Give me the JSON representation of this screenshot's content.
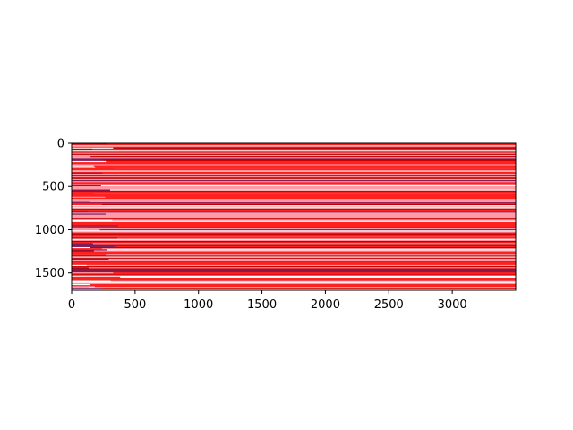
{
  "chart_data": {
    "type": "heatmap",
    "title": "",
    "xlabel": "",
    "ylabel": "",
    "xlim": [
      0,
      3500
    ],
    "ylim": [
      1700,
      0
    ],
    "x_ticks": [
      0,
      500,
      1000,
      1500,
      2000,
      2500,
      3000
    ],
    "y_ticks": [
      0,
      500,
      1000,
      1500
    ],
    "x_tick_labels": [
      "0",
      "500",
      "1000",
      "1500",
      "2000",
      "2500",
      "3000"
    ],
    "y_tick_labels": [
      "0",
      "500",
      "1000",
      "1500"
    ],
    "colormap": [
      "#ffffff",
      "#ff9aa8",
      "#ff2020",
      "#c00000",
      "#7a2060"
    ],
    "rows": 1700,
    "cols": 3500,
    "description_of_pattern": "horizontal red/white/dark-red banding, near-constant along x"
  }
}
